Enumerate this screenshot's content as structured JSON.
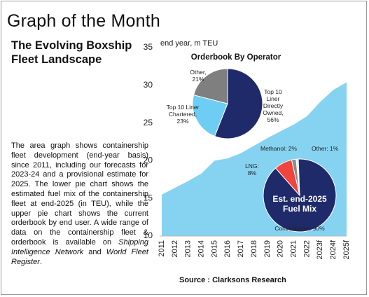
{
  "header": {
    "title": "Graph of the Month"
  },
  "article": {
    "heading": "The Evolving Boxship Fleet Landscape",
    "paragraph": [
      "The area graph shows containership fleet development (end-year basis) since 2011, including our forecasts for 2023-24 and a provisional estimate for 2025. The lower pie chart shows the estimated fuel mix of the containership fleet at end-2025 (in TEU), while the upper pie chart shows the current orderbook by end user. A wide range of data on the containership fleet & orderbook is available on ",
      "Shipping Intelligence Network",
      " and ",
      "World Fleet Register",
      "."
    ]
  },
  "source": "Source : Clarksons Research",
  "chart_data": [
    {
      "type": "area",
      "y_label": "end year, m TEU",
      "categories": [
        "2011",
        "2012",
        "2013",
        "2014",
        "2015",
        "2016",
        "2017",
        "2018",
        "2019",
        "2020",
        "2021",
        "2022",
        "2023f",
        "2024f",
        "2025f"
      ],
      "values": [
        15.5,
        16.4,
        17.3,
        18.3,
        20.0,
        20.3,
        21.0,
        22.0,
        23.0,
        23.9,
        24.8,
        25.9,
        27.8,
        29.4,
        30.4
      ],
      "color": "#86d3f1",
      "ylim": [
        10,
        35
      ],
      "yticks": [
        10,
        15,
        20,
        25,
        30,
        35
      ],
      "grid": false
    },
    {
      "type": "pie",
      "title": "Orderbook By Operator",
      "values": [
        56,
        23,
        21
      ],
      "value_labels": [
        "Top 10 Liner Directly Owned, 56%",
        "Top 10 Liner Chartered, 23%",
        "Other, 21%"
      ],
      "colors": [
        "#1f2a6b",
        "#6ecdf2",
        "#7f7f7f"
      ]
    },
    {
      "type": "pie",
      "title": "Est. end-2025 Fuel Mix",
      "values": [
        1,
        90,
        8,
        2
      ],
      "value_labels": [
        "Other: 1%",
        "Conventional: 90%",
        "LNG: 8%",
        "Methanol: 2%"
      ],
      "colors": [
        "#d9eef8",
        "#1f2a6b",
        "#f0443f",
        "#8c8c8c"
      ]
    }
  ]
}
